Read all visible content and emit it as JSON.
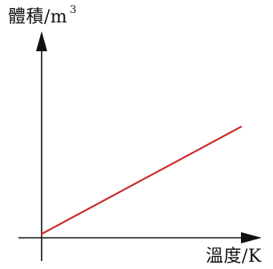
{
  "chart_data": {
    "type": "line",
    "title": "",
    "xlabel": "溫度/K",
    "ylabel_main": "體積/m",
    "ylabel_exponent": "3",
    "colors": {
      "axis": "#111111",
      "line": "#cc2a2a"
    },
    "grid": false,
    "legend": "none",
    "xlim": [
      0,
      10
    ],
    "ylim": [
      0,
      10
    ],
    "series": [
      {
        "x": [
          0,
          10
        ],
        "y": [
          0.2,
          5.8
        ]
      }
    ]
  }
}
